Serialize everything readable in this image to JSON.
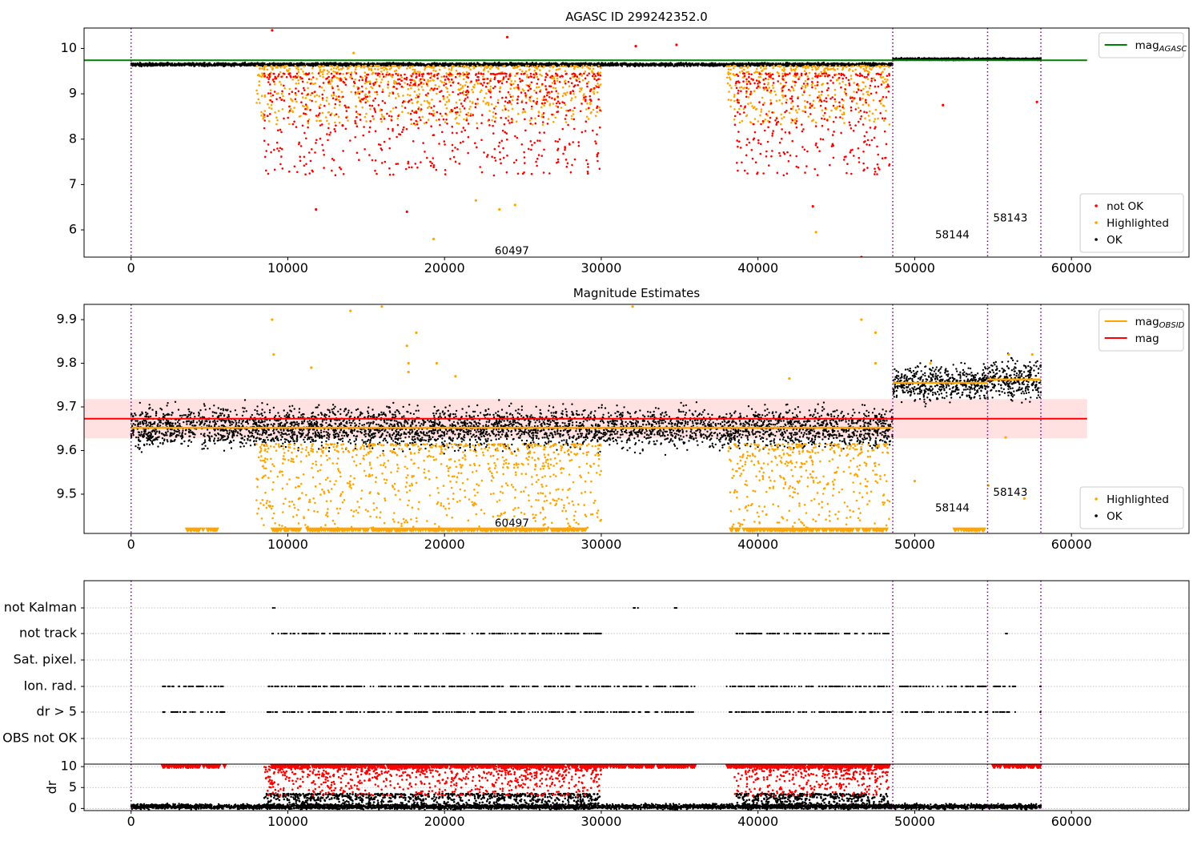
{
  "chart_data": [
    {
      "type": "scatter",
      "title": "AGASC ID 299242352.0",
      "xlim": [
        -3000,
        67500
      ],
      "ylim": [
        5.4,
        10.45
      ],
      "xticks": [
        0,
        10000,
        20000,
        30000,
        40000,
        50000,
        60000
      ],
      "yticks": [
        6,
        7,
        8,
        9,
        10
      ],
      "vlines": [
        0,
        48600,
        54650,
        58050
      ],
      "hline": {
        "name": "mag_AGASC",
        "value": 9.74,
        "color": "#008000",
        "xmax": 61000
      },
      "annotations": [
        {
          "text": "60497",
          "x": 24300,
          "y": 5.55
        },
        {
          "text": "58144",
          "x": 52400,
          "y": 5.9
        },
        {
          "text": "58143",
          "x": 56100,
          "y": 6.27
        }
      ],
      "legends": [
        {
          "position": "top-right",
          "entries": [
            {
              "label": "mag",
              "sub": "AGASC",
              "color": "#008000",
              "marker": "line"
            }
          ]
        },
        {
          "position": "lower-right",
          "entries": [
            {
              "label": "not OK",
              "color": "#ff0000",
              "marker": "dot"
            },
            {
              "label": "Highlighted",
              "color": "#ffa500",
              "marker": "dot"
            },
            {
              "label": "OK",
              "color": "#000000",
              "marker": "dot"
            }
          ]
        }
      ],
      "series": [
        {
          "name": "OK",
          "color": "#000000",
          "segments": [
            {
              "x0": 0,
              "x1": 48600,
              "level": 9.645,
              "spread": 0.03
            },
            {
              "x0": 48600,
              "x1": 58050,
              "level": 9.765,
              "spread": 0.02
            }
          ]
        },
        {
          "name": "Highlighted",
          "color": "#ffa500",
          "clusters": [
            {
              "x0": 8000,
              "x1": 30000,
              "ymin": 8.3,
              "ymax": 9.62
            },
            {
              "x0": 38000,
              "x1": 48400,
              "ymin": 8.3,
              "ymax": 9.62
            }
          ],
          "points": [
            [
              19300,
              5.8
            ],
            [
              23500,
              6.45
            ],
            [
              24500,
              6.55
            ],
            [
              22000,
              6.65
            ],
            [
              43700,
              5.95
            ],
            [
              14200,
              9.9
            ]
          ]
        },
        {
          "name": "not OK",
          "color": "#ff0000",
          "clusters": [
            {
              "x0": 8500,
              "x1": 30000,
              "ymin": 7.2,
              "ymax": 9.45
            },
            {
              "x0": 38500,
              "x1": 48400,
              "ymin": 7.2,
              "ymax": 9.45
            }
          ],
          "points": [
            [
              9000,
              10.4
            ],
            [
              24000,
              10.25
            ],
            [
              32200,
              10.05
            ],
            [
              34800,
              10.08
            ],
            [
              11800,
              6.45
            ],
            [
              17600,
              6.4
            ],
            [
              46600,
              5.4
            ],
            [
              43500,
              6.52
            ],
            [
              51800,
              8.75
            ],
            [
              57800,
              8.82
            ],
            [
              13500,
              8.3
            ]
          ]
        }
      ]
    },
    {
      "type": "scatter",
      "title": "Magnitude Estimates",
      "xlim": [
        -3000,
        67500
      ],
      "ylim": [
        9.41,
        9.935
      ],
      "xticks": [
        0,
        10000,
        20000,
        30000,
        40000,
        50000,
        60000
      ],
      "yticks": [
        9.5,
        9.6,
        9.7,
        9.8,
        9.9
      ],
      "vlines": [
        0,
        48600,
        54650,
        58050
      ],
      "band": {
        "ymin": 9.628,
        "ymax": 9.718,
        "color": "#ffd7d7",
        "xmax": 61000
      },
      "hline": {
        "name": "mag",
        "value": 9.673,
        "color": "#ff0000",
        "xmax": 61000
      },
      "obsid_means": [
        {
          "x0": 0,
          "x1": 48600,
          "value": 9.652
        },
        {
          "x0": 48600,
          "x1": 54650,
          "value": 9.755
        },
        {
          "x0": 54650,
          "x1": 58050,
          "value": 9.763
        }
      ],
      "annotations": [
        {
          "text": "60497",
          "x": 24300,
          "y": 9.435
        },
        {
          "text": "58144",
          "x": 52400,
          "y": 9.47
        },
        {
          "text": "58143",
          "x": 56100,
          "y": 9.505
        }
      ],
      "legends": [
        {
          "position": "top-right",
          "entries": [
            {
              "label": "mag",
              "sub": "OBSID",
              "color": "#ffa500",
              "marker": "line"
            },
            {
              "label": "mag",
              "color": "#ff0000",
              "marker": "line"
            }
          ]
        },
        {
          "position": "lower-right",
          "entries": [
            {
              "label": "Highlighted",
              "color": "#ffa500",
              "marker": "dot"
            },
            {
              "label": "OK",
              "color": "#000000",
              "marker": "dot"
            }
          ]
        }
      ],
      "series": [
        {
          "name": "OK",
          "color": "#000000",
          "segments": [
            {
              "x0": 0,
              "x1": 48600,
              "level": 9.652,
              "spread": 0.04
            },
            {
              "x0": 48600,
              "x1": 54650,
              "level": 9.755,
              "spread": 0.035
            },
            {
              "x0": 54650,
              "x1": 58050,
              "level": 9.763,
              "spread": 0.04
            }
          ]
        },
        {
          "name": "Highlighted",
          "color": "#ffa500",
          "clusters": [
            {
              "x0": 8000,
              "x1": 30000,
              "ymin": 9.42,
              "ymax": 9.615
            },
            {
              "x0": 38000,
              "x1": 48400,
              "ymin": 9.42,
              "ymax": 9.615
            }
          ],
          "points": [
            [
              9000,
              9.9
            ],
            [
              9100,
              9.82
            ],
            [
              14000,
              9.92
            ],
            [
              16000,
              9.93
            ],
            [
              17600,
              9.84
            ],
            [
              17700,
              9.8
            ],
            [
              17700,
              9.78
            ],
            [
              18200,
              9.87
            ],
            [
              19500,
              9.8
            ],
            [
              20700,
              9.77
            ],
            [
              32000,
              9.93
            ],
            [
              46600,
              9.9
            ],
            [
              47500,
              9.87
            ],
            [
              47500,
              9.8
            ],
            [
              42000,
              9.765
            ],
            [
              11500,
              9.79
            ],
            [
              51000,
              9.8
            ],
            [
              56000,
              9.82
            ],
            [
              57500,
              9.82
            ],
            [
              55800,
              9.63
            ],
            [
              57000,
              9.49
            ],
            [
              50000,
              9.53
            ],
            [
              54700,
              9.52
            ]
          ]
        },
        {
          "name": "Highlighted (below range)",
          "color": "#ffa500",
          "marker": "triangle-down",
          "rows": [
            {
              "x0": 3500,
              "x1": 5500,
              "y": 9.418
            },
            {
              "x0": 9000,
              "x1": 29000,
              "y": 9.418
            },
            {
              "x0": 38200,
              "x1": 48200,
              "y": 9.418
            },
            {
              "x0": 52500,
              "x1": 54500,
              "y": 9.418
            }
          ]
        }
      ]
    },
    {
      "type": "scatter",
      "title": "",
      "xlim": [
        -3000,
        67500
      ],
      "vlines": [
        0,
        48600,
        54650,
        58050
      ],
      "categories": [
        "not Kalman",
        "not track",
        "Sat. pixel.",
        "Ion. rad.",
        "dr > 5",
        "OBS not OK"
      ],
      "flag_ranges": {
        "not Kalman": [
          [
            9000,
            9300
          ],
          [
            32000,
            32400
          ],
          [
            34600,
            34900
          ]
        ],
        "not track": [
          [
            9000,
            30000
          ],
          [
            38500,
            48400
          ],
          [
            55800,
            55900
          ]
        ],
        "Sat. pixel.": [],
        "Ion. rad.": [
          [
            2000,
            6000
          ],
          [
            8500,
            36000
          ],
          [
            38000,
            48600
          ],
          [
            49000,
            54700
          ],
          [
            55000,
            56500
          ],
          [
            58000,
            58050
          ]
        ],
        "dr > 5": [
          [
            2000,
            6000
          ],
          [
            8500,
            36000
          ],
          [
            38000,
            48600
          ],
          [
            49000,
            54700
          ],
          [
            55000,
            56500
          ],
          [
            58000,
            58050
          ]
        ],
        "OBS not OK": []
      }
    },
    {
      "type": "scatter",
      "title": "",
      "ylabel": "dr",
      "xlim": [
        -3000,
        67500
      ],
      "ylim": [
        -0.5,
        10.6
      ],
      "xticks": [
        0,
        10000,
        20000,
        30000,
        40000,
        50000,
        60000
      ],
      "yticks": [
        0,
        5,
        10
      ],
      "vlines": [
        0,
        48600,
        54650,
        58050
      ],
      "series": [
        {
          "name": "OK",
          "color": "#000000",
          "segments": [
            {
              "x0": 0,
              "x1": 58050,
              "level": 0.45,
              "spread": 0.5
            }
          ],
          "clusters": [
            {
              "x0": 8500,
              "x1": 30000,
              "ymin": 0,
              "ymax": 3.5
            },
            {
              "x0": 38500,
              "x1": 48400,
              "ymin": 0,
              "ymax": 3.5
            }
          ]
        },
        {
          "name": "not OK",
          "color": "#ff0000",
          "clusters": [
            {
              "x0": 8500,
              "x1": 30000,
              "ymin": 3,
              "ymax": 10
            },
            {
              "x0": 38500,
              "x1": 48400,
              "ymin": 3,
              "ymax": 10
            }
          ],
          "rows": [
            {
              "x0": 2000,
              "x1": 6000,
              "y": 10
            },
            {
              "x0": 9000,
              "x1": 36000,
              "y": 10
            },
            {
              "x0": 38000,
              "x1": 48600,
              "y": 10
            },
            {
              "x0": 55000,
              "x1": 58050,
              "y": 10
            }
          ]
        }
      ]
    }
  ]
}
